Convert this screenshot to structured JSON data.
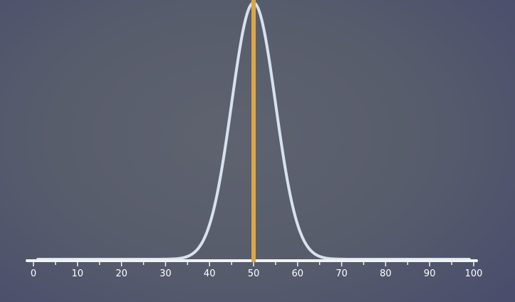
{
  "chart_data": {
    "type": "line",
    "title": "",
    "xlabel": "",
    "ylabel": "",
    "xlim": [
      0,
      100
    ],
    "grid": false,
    "legend": "none",
    "x_ticks": [
      0,
      10,
      20,
      30,
      40,
      50,
      60,
      70,
      80,
      90,
      100
    ],
    "x_tick_labels": [
      "0",
      "10",
      "20",
      "30",
      "40",
      "50",
      "60",
      "70",
      "80",
      "90",
      "100"
    ],
    "minor_tick_step": 5,
    "series": [
      {
        "kind": "normal-curve",
        "mean": 50,
        "sd": 5,
        "color": "#d8e2ee"
      }
    ],
    "markers": [
      {
        "kind": "vertical-line",
        "x": 50,
        "color": "#dca648"
      }
    ],
    "axis_color": "#f2f2f2"
  }
}
